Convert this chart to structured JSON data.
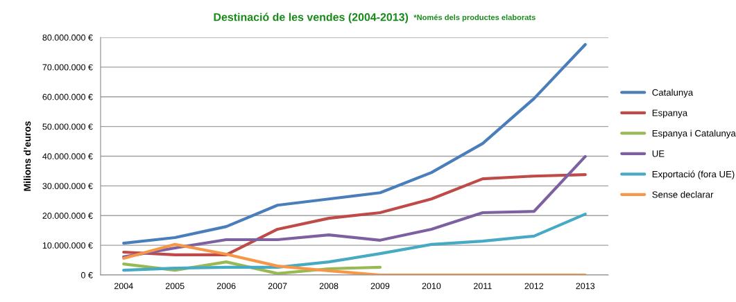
{
  "chart_data": {
    "type": "line",
    "title": "Destinació de les vendes (2004-2013)",
    "subtitle": "*Només dels productes elaborats",
    "ylabel": "Milions d’euros",
    "categories": [
      "2004",
      "2005",
      "2006",
      "2007",
      "2008",
      "2009",
      "2010",
      "2011",
      "2012",
      "2013"
    ],
    "series": [
      {
        "name": "Catalunya",
        "color": "#4a7ebb",
        "values": [
          10700000,
          12600000,
          16300000,
          23500000,
          25600000,
          27700000,
          34500000,
          44300000,
          59400000,
          77600000
        ]
      },
      {
        "name": "Espanya",
        "color": "#be4b48",
        "values": [
          7700000,
          6800000,
          6800000,
          15400000,
          19100000,
          21000000,
          25600000,
          32400000,
          33300000,
          33800000
        ]
      },
      {
        "name": "Espanya i Catalunya",
        "color": "#98b954",
        "values": [
          3700000,
          1600000,
          4400000,
          500000,
          2100000,
          2600000,
          null,
          null,
          null,
          null
        ]
      },
      {
        "name": "UE",
        "color": "#7d60a0",
        "values": [
          6100000,
          9100000,
          11900000,
          11900000,
          13500000,
          11700000,
          15400000,
          21000000,
          21400000,
          39900000
        ]
      },
      {
        "name": "Exportació (fora UE)",
        "color": "#46aac5",
        "values": [
          1600000,
          2300000,
          2600000,
          2600000,
          4400000,
          7200000,
          10300000,
          11400000,
          13100000,
          20500000
        ]
      },
      {
        "name": "Sense declarar",
        "color": "#f79646",
        "values": [
          5600000,
          10300000,
          7000000,
          3000000,
          1400000,
          0,
          0,
          0,
          0,
          0
        ]
      }
    ],
    "ylim": [
      0,
      80000000
    ],
    "yticks": [
      {
        "value": 0,
        "label": "0 €"
      },
      {
        "value": 10000000,
        "label": "10.000.000 €"
      },
      {
        "value": 20000000,
        "label": "20.000.000 €"
      },
      {
        "value": 30000000,
        "label": "30.000.000 €"
      },
      {
        "value": 40000000,
        "label": "40.000.000 €"
      },
      {
        "value": 50000000,
        "label": "50.000.000 €"
      },
      {
        "value": 60000000,
        "label": "60.000.000 €"
      },
      {
        "value": 70000000,
        "label": "70.000.000 €"
      },
      {
        "value": 80000000,
        "label": "80.000.000 €"
      }
    ],
    "grid": "y",
    "legend": "right",
    "marker": "none",
    "line_style": "solid"
  }
}
